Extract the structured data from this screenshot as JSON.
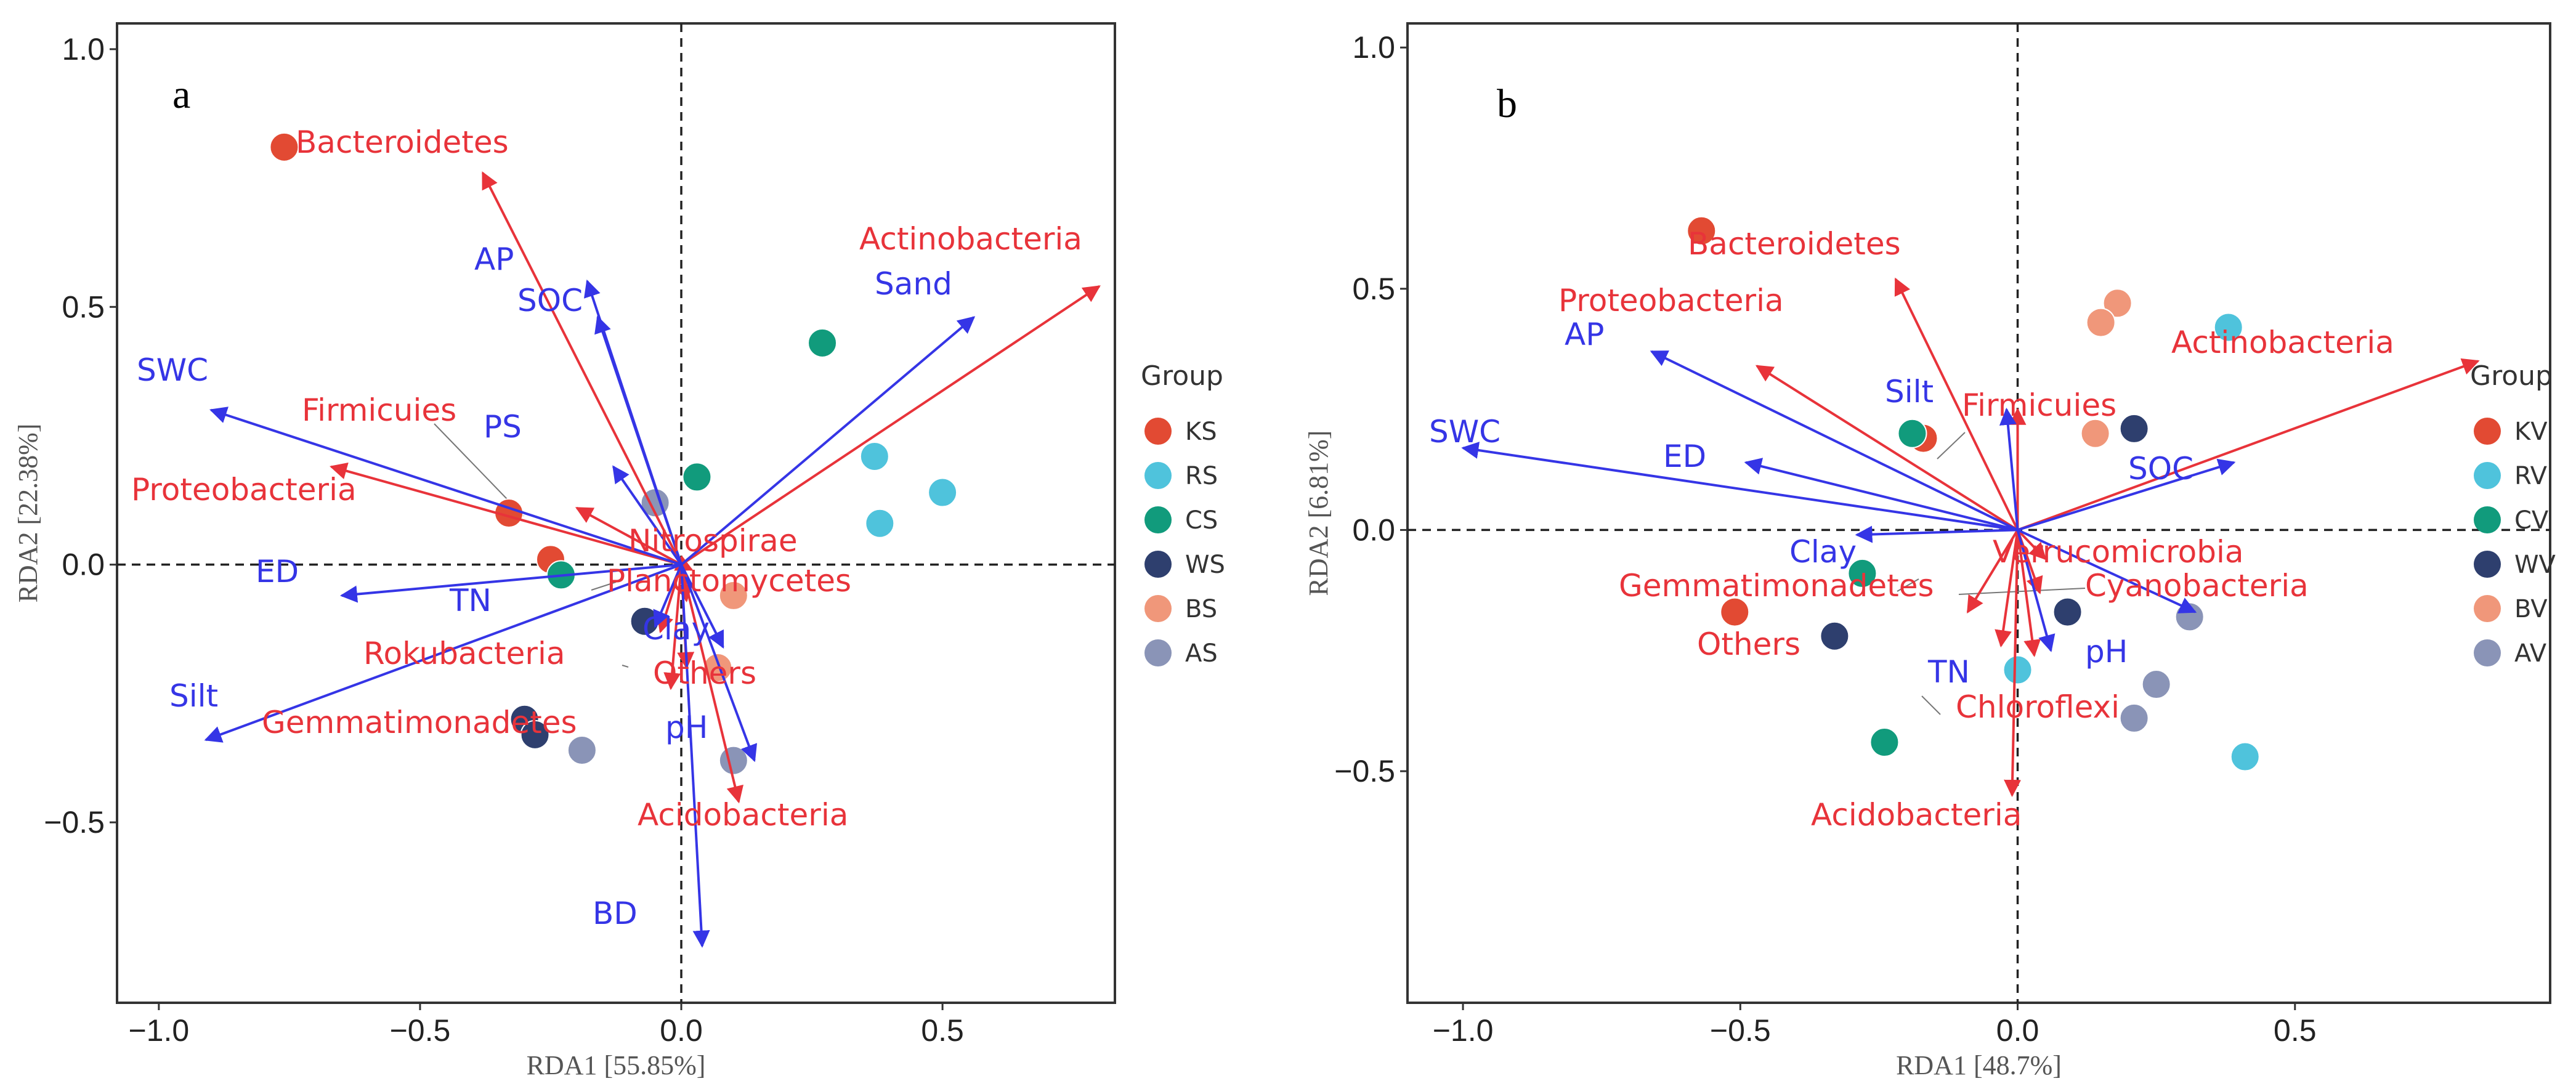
{
  "colors": {
    "species": "#e8333a",
    "environment": "#3535e6",
    "groups": [
      "#e24a33",
      "#4fc3dc",
      "#119b7c",
      "#2e3f6e",
      "#f0977a",
      "#8a94b7"
    ]
  },
  "chart_data": [
    {
      "type": "scatter",
      "panel_label": "a",
      "xlabel": "RDA1 [55.85%]",
      "ylabel": "RDA2 [22.38%]",
      "xlim": [
        -1.08,
        0.83
      ],
      "ylim": [
        -0.85,
        1.05
      ],
      "xticks": [
        -1.0,
        -0.5,
        0.0,
        0.5
      ],
      "yticks": [
        -0.5,
        0.0,
        0.5,
        1.0
      ],
      "tick_labels_x": [
        "−1.0",
        "−0.5",
        "0.0",
        "0.5"
      ],
      "tick_labels_y": [
        "−0.5",
        "0.0",
        "0.5",
        "1.0"
      ],
      "legend": {
        "title": "Group",
        "entries": [
          "KS",
          "RS",
          "CS",
          "WS",
          "BS",
          "AS"
        ]
      },
      "species_arrows": [
        {
          "name": "Bacteroidetes",
          "x": -0.38,
          "y": 0.76
        },
        {
          "name": "Actinobacteria",
          "x": 0.8,
          "y": 0.54
        },
        {
          "name": "Firmicuies",
          "x": -0.67,
          "y": 0.19
        },
        {
          "name": "Proteobacteria",
          "x": -0.2,
          "y": 0.11
        },
        {
          "name": "Nitrospirae",
          "x": 0.02,
          "y": -0.01
        },
        {
          "name": "Planctomycetes",
          "x": 0.01,
          "y": -0.07
        },
        {
          "name": "Rokubacteria",
          "x": -0.04,
          "y": -0.13
        },
        {
          "name": "Others",
          "x": 0.01,
          "y": -0.2
        },
        {
          "name": "Gemmatimonadetes",
          "x": -0.02,
          "y": -0.24
        },
        {
          "name": "Acidobacteria",
          "x": 0.11,
          "y": -0.46
        }
      ],
      "env_arrows": [
        {
          "name": "AP",
          "x": -0.18,
          "y": 0.55
        },
        {
          "name": "SOC",
          "x": -0.16,
          "y": 0.48
        },
        {
          "name": "Sand",
          "x": 0.56,
          "y": 0.48
        },
        {
          "name": "SWC",
          "x": -0.9,
          "y": 0.3
        },
        {
          "name": "PS",
          "x": -0.13,
          "y": 0.19
        },
        {
          "name": "ED",
          "x": -0.65,
          "y": -0.06
        },
        {
          "name": "TN",
          "x": -0.05,
          "y": -0.12
        },
        {
          "name": "Clay",
          "x": 0.08,
          "y": -0.16
        },
        {
          "name": "Silt",
          "x": -0.91,
          "y": -0.34
        },
        {
          "name": "pH",
          "x": 0.14,
          "y": -0.38
        },
        {
          "name": "BD",
          "x": 0.04,
          "y": -0.74
        }
      ],
      "points": [
        {
          "group": "KS",
          "x": -0.76,
          "y": 0.81
        },
        {
          "group": "KS",
          "x": -0.33,
          "y": 0.1
        },
        {
          "group": "KS",
          "x": -0.25,
          "y": 0.01
        },
        {
          "group": "RS",
          "x": 0.37,
          "y": 0.21
        },
        {
          "group": "RS",
          "x": 0.38,
          "y": 0.08
        },
        {
          "group": "RS",
          "x": 0.5,
          "y": 0.14
        },
        {
          "group": "CS",
          "x": 0.27,
          "y": 0.43
        },
        {
          "group": "CS",
          "x": 0.03,
          "y": 0.17
        },
        {
          "group": "CS",
          "x": -0.23,
          "y": -0.02
        },
        {
          "group": "WS",
          "x": -0.07,
          "y": -0.11
        },
        {
          "group": "WS",
          "x": -0.3,
          "y": -0.3
        },
        {
          "group": "WS",
          "x": -0.28,
          "y": -0.33
        },
        {
          "group": "BS",
          "x": 0.1,
          "y": -0.06
        },
        {
          "group": "BS",
          "x": 0.07,
          "y": -0.2
        },
        {
          "group": "AS",
          "x": -0.05,
          "y": 0.12
        },
        {
          "group": "AS",
          "x": -0.19,
          "y": -0.36
        },
        {
          "group": "AS",
          "x": 0.1,
          "y": -0.38
        }
      ]
    },
    {
      "type": "scatter",
      "panel_label": "b",
      "xlabel": "RDA1 [48.7%]",
      "ylabel": "RDA2 [6.81%]",
      "xlim": [
        -1.1,
        0.96
      ],
      "ylim": [
        -0.98,
        1.05
      ],
      "xticks": [
        -1.0,
        -0.5,
        0.0,
        0.5
      ],
      "yticks": [
        -0.5,
        0.0,
        0.5,
        1.0
      ],
      "tick_labels_x": [
        "−1.0",
        "−0.5",
        "0.0",
        "0.5"
      ],
      "tick_labels_y": [
        "−0.5",
        "0.0",
        "0.5",
        "1.0"
      ],
      "legend": {
        "title": "Group",
        "entries": [
          "KV",
          "RV",
          "CV",
          "WV",
          "BV",
          "AV"
        ]
      },
      "species_arrows": [
        {
          "name": "Bacteroidetes",
          "x": -0.22,
          "y": 0.52
        },
        {
          "name": "Proteobacteria",
          "x": -0.47,
          "y": 0.34
        },
        {
          "name": "Actinobacteria",
          "x": 0.83,
          "y": 0.35
        },
        {
          "name": "Firmicuies",
          "x": 0.0,
          "y": 0.25
        },
        {
          "name": "Verrucomicrobia",
          "x": 0.05,
          "y": -0.06
        },
        {
          "name": "Cyanobacteria",
          "x": 0.04,
          "y": -0.13
        },
        {
          "name": "Gemmatimonadetes",
          "x": -0.09,
          "y": -0.17
        },
        {
          "name": "Others",
          "x": -0.03,
          "y": -0.24
        },
        {
          "name": "Chloroflexi",
          "x": 0.03,
          "y": -0.26
        },
        {
          "name": "Acidobacteria",
          "x": -0.01,
          "y": -0.55
        }
      ],
      "env_arrows": [
        {
          "name": "AP",
          "x": -0.66,
          "y": 0.37
        },
        {
          "name": "SWC",
          "x": -1.0,
          "y": 0.17
        },
        {
          "name": "Silt",
          "x": -0.02,
          "y": 0.25
        },
        {
          "name": "ED",
          "x": -0.49,
          "y": 0.14
        },
        {
          "name": "SOC",
          "x": 0.39,
          "y": 0.14
        },
        {
          "name": "Clay",
          "x": -0.29,
          "y": -0.01
        },
        {
          "name": "pH",
          "x": 0.32,
          "y": -0.17
        },
        {
          "name": "TN",
          "x": 0.06,
          "y": -0.25
        }
      ],
      "points": [
        {
          "group": "KV",
          "x": -0.57,
          "y": 0.62
        },
        {
          "group": "KV",
          "x": -0.17,
          "y": 0.19
        },
        {
          "group": "KV",
          "x": -0.51,
          "y": -0.17
        },
        {
          "group": "RV",
          "x": 0.38,
          "y": 0.42
        },
        {
          "group": "RV",
          "x": 0.0,
          "y": -0.29
        },
        {
          "group": "RV",
          "x": 0.41,
          "y": -0.47
        },
        {
          "group": "CV",
          "x": -0.19,
          "y": 0.2
        },
        {
          "group": "CV",
          "x": -0.28,
          "y": -0.09
        },
        {
          "group": "CV",
          "x": -0.24,
          "y": -0.44
        },
        {
          "group": "WV",
          "x": 0.21,
          "y": 0.21
        },
        {
          "group": "WV",
          "x": 0.09,
          "y": -0.17
        },
        {
          "group": "WV",
          "x": -0.33,
          "y": -0.22
        },
        {
          "group": "BV",
          "x": 0.18,
          "y": 0.47
        },
        {
          "group": "BV",
          "x": 0.15,
          "y": 0.43
        },
        {
          "group": "BV",
          "x": 0.14,
          "y": 0.2
        },
        {
          "group": "AV",
          "x": 0.31,
          "y": -0.18
        },
        {
          "group": "AV",
          "x": 0.25,
          "y": -0.32
        },
        {
          "group": "AV",
          "x": 0.21,
          "y": -0.39
        }
      ]
    }
  ]
}
